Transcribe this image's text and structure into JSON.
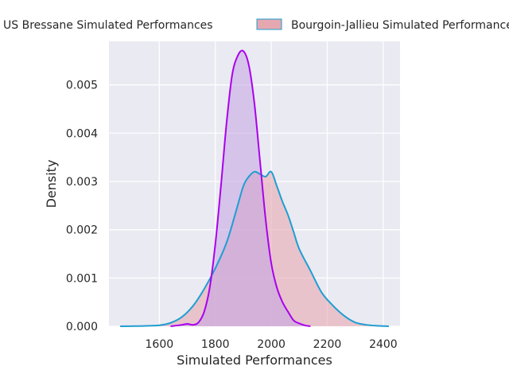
{
  "chart_data": {
    "type": "area",
    "xlabel": "Simulated Performances",
    "ylabel": "Density",
    "xlim": [
      1420,
      2460
    ],
    "ylim": [
      0,
      0.0059
    ],
    "xticks": [
      1600,
      1800,
      2000,
      2200,
      2400
    ],
    "yticks": [
      0.0,
      0.001,
      0.002,
      0.003,
      0.004,
      0.005
    ],
    "ytick_labels": [
      "0.000",
      "0.001",
      "0.002",
      "0.003",
      "0.004",
      "0.005"
    ],
    "grid": true,
    "legend_placement": "top, above plot",
    "series": [
      {
        "name": "US Bressane Simulated Performances",
        "line_color": "#aa00ee",
        "fill_color": "#c2a3e3",
        "x": [
          1640,
          1680,
          1700,
          1720,
          1740,
          1760,
          1780,
          1800,
          1820,
          1840,
          1860,
          1880,
          1900,
          1920,
          1940,
          1960,
          1980,
          2000,
          2020,
          2040,
          2060,
          2080,
          2100,
          2120,
          2140
        ],
        "y": [
          0.0,
          3e-05,
          5e-05,
          3e-05,
          8e-05,
          0.0003,
          0.0008,
          0.0017,
          0.0029,
          0.0042,
          0.0052,
          0.0056,
          0.0057,
          0.0054,
          0.0046,
          0.0034,
          0.0022,
          0.0013,
          0.0008,
          0.0005,
          0.0003,
          0.00012,
          6e-05,
          2e-05,
          0.0
        ]
      },
      {
        "name": "Bourgoin-Jallieu Simulated Performances",
        "line_color": "#1f9ed1",
        "fill_color": "#e6a8b0",
        "x": [
          1460,
          1500,
          1550,
          1600,
          1640,
          1680,
          1720,
          1760,
          1800,
          1840,
          1870,
          1900,
          1920,
          1940,
          1960,
          1980,
          2000,
          2020,
          2040,
          2060,
          2080,
          2100,
          2140,
          2180,
          2220,
          2260,
          2300,
          2340,
          2380,
          2420
        ],
        "y": [
          0.0,
          3e-06,
          8e-06,
          2e-05,
          7e-05,
          0.00019,
          0.00042,
          0.00077,
          0.0012,
          0.00173,
          0.0023,
          0.0029,
          0.0031,
          0.0032,
          0.00315,
          0.0031,
          0.0032,
          0.0029,
          0.00258,
          0.0023,
          0.00195,
          0.0016,
          0.00115,
          0.0007,
          0.00043,
          0.00022,
          8e-05,
          3e-05,
          1e-05,
          0.0
        ]
      }
    ]
  }
}
